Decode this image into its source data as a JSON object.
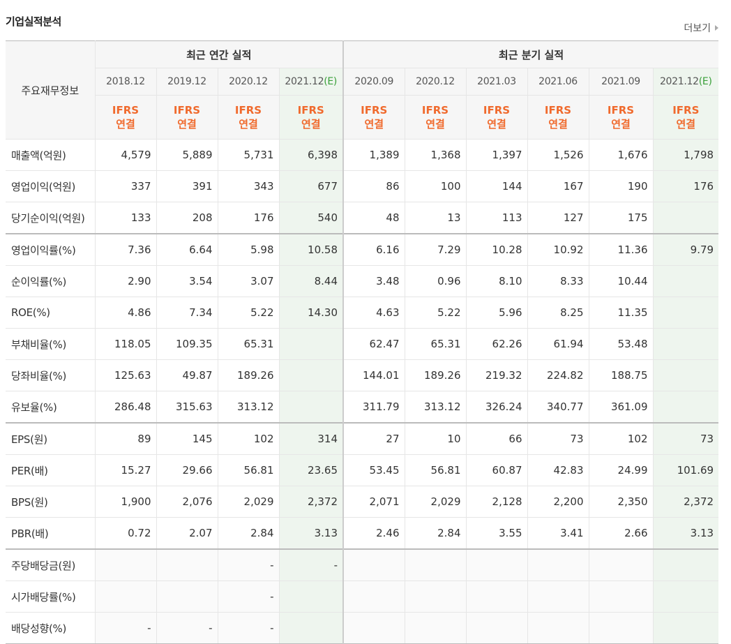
{
  "header": {
    "title": "기업실적분석",
    "more_label": "더보기"
  },
  "table": {
    "corner_label": "주요재무정보",
    "groups": [
      "최근 연간 실적",
      "최근 분기 실적"
    ],
    "annual_dates": [
      "2018.12",
      "2019.12",
      "2020.12",
      "2021.12"
    ],
    "quarter_dates": [
      "2020.09",
      "2020.12",
      "2021.03",
      "2021.06",
      "2021.09",
      "2021.12"
    ],
    "estimate_marker": "(E)",
    "ifrs_top": "IFRS",
    "ifrs_bottom": "연결",
    "rows": [
      {
        "label": "매출액(억원)",
        "values": [
          "4,579",
          "5,889",
          "5,731",
          "6,398",
          "1,389",
          "1,368",
          "1,397",
          "1,526",
          "1,676",
          "1,798"
        ]
      },
      {
        "label": "영업이익(억원)",
        "values": [
          "337",
          "391",
          "343",
          "677",
          "86",
          "100",
          "144",
          "167",
          "190",
          "176"
        ]
      },
      {
        "label": "당기순이익(억원)",
        "values": [
          "133",
          "208",
          "176",
          "540",
          "48",
          "13",
          "113",
          "127",
          "175",
          ""
        ]
      },
      {
        "label": "영업이익률(%)",
        "values": [
          "7.36",
          "6.64",
          "5.98",
          "10.58",
          "6.16",
          "7.29",
          "10.28",
          "10.92",
          "11.36",
          "9.79"
        ]
      },
      {
        "label": "순이익률(%)",
        "values": [
          "2.90",
          "3.54",
          "3.07",
          "8.44",
          "3.48",
          "0.96",
          "8.10",
          "8.33",
          "10.44",
          ""
        ]
      },
      {
        "label": "ROE(%)",
        "values": [
          "4.86",
          "7.34",
          "5.22",
          "14.30",
          "4.63",
          "5.22",
          "5.96",
          "8.25",
          "11.35",
          ""
        ]
      },
      {
        "label": "부채비율(%)",
        "values": [
          "118.05",
          "109.35",
          "65.31",
          "",
          "62.47",
          "65.31",
          "62.26",
          "61.94",
          "53.48",
          ""
        ]
      },
      {
        "label": "당좌비율(%)",
        "values": [
          "125.63",
          "49.87",
          "189.26",
          "",
          "144.01",
          "189.26",
          "219.32",
          "224.82",
          "188.75",
          ""
        ]
      },
      {
        "label": "유보율(%)",
        "values": [
          "286.48",
          "315.63",
          "313.12",
          "",
          "311.79",
          "313.12",
          "326.24",
          "340.77",
          "361.09",
          ""
        ]
      },
      {
        "label": "EPS(원)",
        "values": [
          "89",
          "145",
          "102",
          "314",
          "27",
          "10",
          "66",
          "73",
          "102",
          "73"
        ]
      },
      {
        "label": "PER(배)",
        "values": [
          "15.27",
          "29.66",
          "56.81",
          "23.65",
          "53.45",
          "56.81",
          "60.87",
          "42.83",
          "24.99",
          "101.69"
        ]
      },
      {
        "label": "BPS(원)",
        "values": [
          "1,900",
          "2,076",
          "2,029",
          "2,372",
          "2,071",
          "2,029",
          "2,128",
          "2,200",
          "2,350",
          "2,372"
        ]
      },
      {
        "label": "PBR(배)",
        "values": [
          "0.72",
          "2.07",
          "2.84",
          "3.13",
          "2.46",
          "2.84",
          "3.55",
          "3.41",
          "2.66",
          "3.13"
        ]
      },
      {
        "label": "주당배당금(원)",
        "values": [
          "",
          "",
          "-",
          "-",
          "",
          "",
          "",
          "",
          "",
          ""
        ]
      },
      {
        "label": "시가배당률(%)",
        "values": [
          "",
          "",
          "-",
          "",
          "",
          "",
          "",
          "",
          "",
          ""
        ]
      },
      {
        "label": "배당성향(%)",
        "values": [
          "-",
          "-",
          "-",
          "",
          "",
          "",
          "",
          "",
          "",
          ""
        ]
      }
    ]
  }
}
